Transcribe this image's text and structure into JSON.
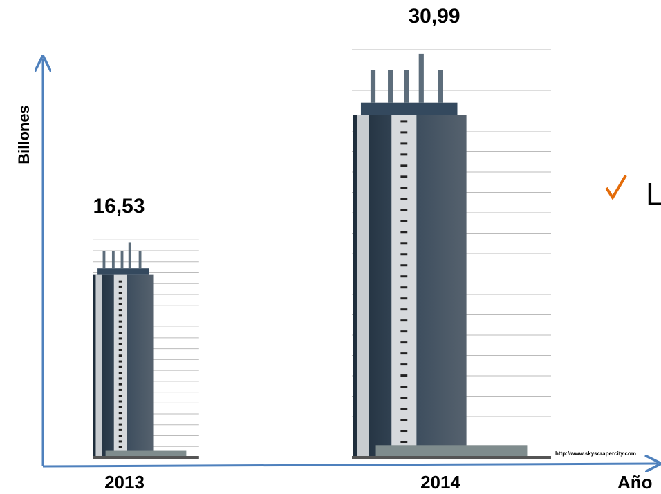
{
  "chart_data": {
    "type": "bar",
    "categories": [
      "2013",
      "2014"
    ],
    "values": [
      16.53,
      30.99
    ],
    "value_labels": [
      "16,53",
      "30,99"
    ],
    "ylabel": "Billones",
    "xlabel": "Año",
    "annotation": "L",
    "source": "http://www.skyscrapercity.com",
    "color": "#2c3e50"
  }
}
